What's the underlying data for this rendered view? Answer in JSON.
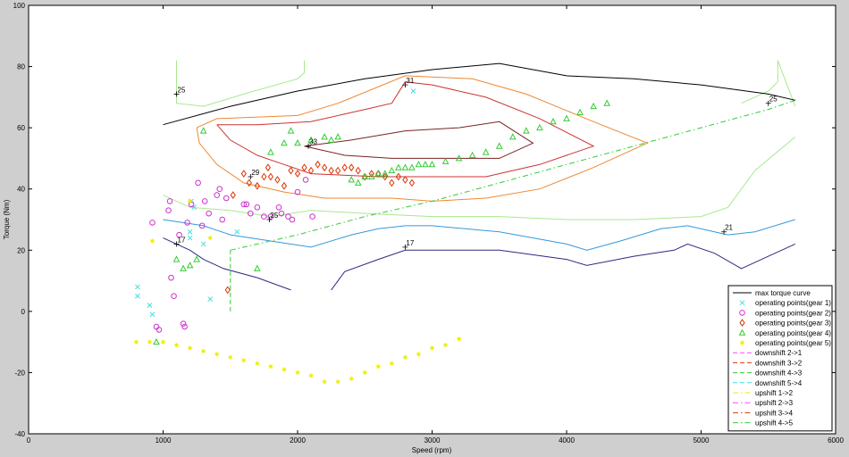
{
  "chart_data": {
    "type": "line",
    "title": "",
    "xlabel": "Speed (rpm)",
    "ylabel": "Torque (Nm)",
    "xlim": [
      0,
      6000
    ],
    "ylim": [
      -40,
      100
    ],
    "xticks": [
      0,
      1000,
      2000,
      3000,
      4000,
      5000,
      6000
    ],
    "yticks": [
      -40,
      -20,
      0,
      20,
      40,
      60,
      80,
      100
    ],
    "grid": false,
    "legend_position": "bottom-right",
    "colors": {
      "max_torque": "#000000",
      "contour_17": "#2b2b80",
      "contour_21": "#3399dd",
      "contour_25": "#a8e890",
      "contour_29": "#ee8833",
      "contour_31": "#cc3333",
      "contour_33": "#7a2222",
      "gear1": "#44dddd",
      "gear2": "#cc33cc",
      "gear3": "#dd3300",
      "gear4": "#33cc33",
      "gear5": "#eeee00"
    },
    "max_torque_curve": {
      "name": "max torque curve",
      "x": [
        1000,
        1500,
        2000,
        2500,
        3000,
        3500,
        4000,
        4500,
        5000,
        5500,
        5700
      ],
      "y": [
        61,
        67,
        72,
        76,
        79,
        81,
        77,
        76,
        74,
        71,
        69
      ]
    },
    "contours": [
      {
        "level": "17",
        "label_points": [
          [
            1100,
            22
          ],
          [
            2800,
            21
          ]
        ],
        "segments": [
          {
            "x": [
              1000,
              1100,
              1200,
              1300,
              1450,
              1700,
              1950
            ],
            "y": [
              24,
              22,
              20,
              17,
              14,
              11,
              7
            ]
          },
          {
            "x": [
              2250,
              2350,
              2600,
              2800,
              3000,
              3500,
              4000,
              4150,
              4500,
              4800,
              4900,
              5100,
              5300,
              5500,
              5700
            ],
            "y": [
              7,
              13,
              17,
              20,
              20,
              20,
              17,
              15,
              18,
              20,
              22,
              19,
              14,
              18,
              22
            ]
          }
        ]
      },
      {
        "level": "21",
        "label_points": [
          [
            5170,
            26
          ]
        ],
        "segments": [
          {
            "x": [
              1000,
              1300,
              1500,
              1800,
              2100,
              2400,
              2600,
              2800,
              3000,
              3500,
              4000,
              4150,
              4400,
              4700,
              4900,
              5100,
              5200,
              5400,
              5700
            ],
            "y": [
              30,
              28,
              25,
              23,
              21,
              25,
              27,
              28,
              28,
              26,
              22,
              20,
              23,
              27,
              28,
              26,
              25,
              26,
              30
            ]
          }
        ]
      },
      {
        "level": "25",
        "label_points": [
          [
            1100,
            71
          ],
          [
            1790,
            30
          ],
          [
            5500,
            68
          ]
        ],
        "segments": [
          {
            "x": [
              1100,
              1100,
              1100,
              1300,
              1600,
              2000,
              2050,
              2050
            ],
            "y": [
              82,
              71,
              68,
              67,
              71,
              76,
              78,
              82
            ]
          },
          {
            "x": [
              1000,
              1200,
              1500,
              1800,
              2100,
              2500,
              3000,
              3500,
              4000,
              4500,
              5000,
              5200,
              5400,
              5700
            ],
            "y": [
              38,
              34,
              33,
              31,
              33,
              32,
              31,
              31,
              30,
              30,
              31,
              34,
              46,
              57
            ]
          },
          {
            "x": [
              5300,
              5500,
              5570,
              5570,
              5700
            ],
            "y": [
              68,
              72,
              75,
              82,
              67
            ]
          }
        ]
      },
      {
        "level": "29",
        "label_points": [
          [
            1650,
            44
          ]
        ],
        "segments": [
          {
            "x": [
              1250,
              1400,
              2000,
              2300,
              2800,
              3300,
              3700,
              4200,
              4600,
              4200,
              3800,
              3400,
              3000,
              2700,
              2200,
              1900,
              1600,
              1400,
              1270,
              1250
            ],
            "y": [
              60,
              63,
              64,
              68,
              77,
              76,
              71,
              62,
              55,
              47,
              40,
              37,
              36,
              37,
              37,
              39,
              42,
              48,
              55,
              60
            ]
          }
        ]
      },
      {
        "level": "31",
        "label_points": [
          [
            2800,
            74
          ]
        ],
        "segments": [
          {
            "x": [
              1400,
              1700,
              2100,
              2500,
              2700,
              2800,
              3000,
              3400,
              3800,
              4200,
              3800,
              3400,
              3000,
              2600,
              2100,
              1900,
              1700,
              1500,
              1400
            ],
            "y": [
              61,
              61,
              62,
              66,
              68,
              75,
              74,
              70,
              63,
              54,
              48,
              44,
              44,
              44,
              45,
              48,
              51,
              56,
              61
            ]
          }
        ]
      },
      {
        "level": "33",
        "label_points": [
          [
            2080,
            54
          ]
        ],
        "segments": [
          {
            "x": [
              2050,
              2400,
              2800,
              3200,
              3500,
              3750,
              3500,
              3100,
              2700,
              2350,
              2050
            ],
            "y": [
              54,
              56,
              59,
              60,
              62,
              55,
              50,
              50,
              50,
              51,
              54
            ]
          }
        ]
      }
    ],
    "downshift_lines": [
      {
        "name": "downshift 4->3",
        "x": [
          1500,
          1500
        ],
        "y": [
          0,
          20
        ]
      }
    ],
    "upshift_lines": [
      {
        "name": "upshift 4->5",
        "x": [
          1500,
          2000,
          2500,
          3000,
          3500,
          4000,
          4500,
          5000,
          5500,
          5700
        ],
        "y": [
          20,
          25,
          31,
          36,
          42,
          48,
          54,
          60,
          66,
          69
        ]
      }
    ],
    "operating_points": [
      {
        "name": "operating points(gear 1)",
        "marker": "x",
        "x": [
          810,
          810,
          900,
          920,
          1200,
          1200,
          1210,
          1230,
          1300,
          1350,
          1550,
          2860
        ],
        "y": [
          8,
          5,
          2,
          -1,
          26,
          24,
          36,
          34,
          22,
          4,
          26,
          72
        ]
      },
      {
        "name": "operating points(gear 2)",
        "marker": "o",
        "x": [
          920,
          950,
          970,
          1040,
          1050,
          1060,
          1080,
          1120,
          1150,
          1160,
          1180,
          1210,
          1260,
          1290,
          1310,
          1340,
          1400,
          1420,
          1440,
          1470,
          1600,
          1620,
          1650,
          1700,
          1750,
          1800,
          1860,
          1880,
          1930,
          1960,
          2000,
          2060,
          2110
        ],
        "y": [
          29,
          -5,
          -6,
          33,
          36,
          11,
          5,
          25,
          -4,
          -5,
          29,
          35,
          42,
          28,
          36,
          32,
          38,
          40,
          30,
          37,
          35,
          35,
          32,
          34,
          31,
          31,
          34,
          32,
          31,
          30,
          39,
          43,
          31
        ]
      },
      {
        "name": "operating points(gear 3)",
        "marker": "d",
        "x": [
          1480,
          1520,
          1600,
          1640,
          1700,
          1750,
          1780,
          1800,
          1850,
          1900,
          1950,
          2000,
          2050,
          2100,
          2150,
          2200,
          2250,
          2300,
          2350,
          2400,
          2450,
          2500,
          2550,
          2600,
          2650,
          2700,
          2750,
          2800,
          2850
        ],
        "y": [
          7,
          38,
          45,
          42,
          41,
          44,
          47,
          44,
          43,
          41,
          46,
          45,
          47,
          46,
          48,
          47,
          46,
          46,
          47,
          47,
          46,
          44,
          45,
          45,
          44,
          42,
          44,
          43,
          42
        ]
      },
      {
        "name": "operating points(gear 4)",
        "marker": "^",
        "x": [
          950,
          1100,
          1150,
          1200,
          1250,
          1300,
          1700,
          1800,
          1900,
          1950,
          2000,
          2100,
          2200,
          2250,
          2300,
          2400,
          2450,
          2500,
          2550,
          2600,
          2650,
          2700,
          2750,
          2800,
          2850,
          2900,
          2950,
          3000,
          3100,
          3200,
          3300,
          3400,
          3500,
          3600,
          3700,
          3800,
          3900,
          4000,
          4100,
          4200,
          4300
        ],
        "y": [
          -10,
          17,
          14,
          15,
          17,
          59,
          14,
          52,
          55,
          59,
          55,
          56,
          57,
          56,
          57,
          43,
          42,
          44,
          44,
          45,
          45,
          46,
          47,
          47,
          47,
          48,
          48,
          48,
          49,
          50,
          51,
          52,
          54,
          57,
          59,
          60,
          62,
          63,
          65,
          67,
          68
        ]
      },
      {
        "name": "operating points(gear 5)",
        "marker": "*",
        "x": [
          800,
          900,
          1000,
          1100,
          1200,
          1300,
          1400,
          1500,
          1600,
          1700,
          1800,
          1900,
          2000,
          2100,
          2200,
          2300,
          2400,
          2500,
          2600,
          2700,
          2800,
          2900,
          3000,
          3100,
          3200,
          920,
          1350,
          1200
        ],
        "y": [
          -10,
          -10,
          -10,
          -11,
          -12,
          -13,
          -14,
          -15,
          -16,
          -17,
          -18,
          -19,
          -20,
          -21,
          -23,
          -23,
          -22,
          -20,
          -18,
          -17,
          -15,
          -14,
          -12,
          -11,
          -9,
          23,
          24,
          36
        ]
      }
    ],
    "legend": [
      {
        "label": "max torque curve",
        "style": "line",
        "color": "#000000"
      },
      {
        "label": "operating points(gear 1)",
        "style": "x",
        "color": "#44dddd"
      },
      {
        "label": "operating points(gear 2)",
        "style": "o",
        "color": "#cc33cc"
      },
      {
        "label": "operating points(gear 3)",
        "style": "d",
        "color": "#dd3300"
      },
      {
        "label": "operating points(gear 4)",
        "style": "^",
        "color": "#33cc33"
      },
      {
        "label": "operating points(gear 5)",
        "style": "*",
        "color": "#eeee00"
      },
      {
        "label": "downshift 2->1",
        "style": "dash",
        "color": "#ff44ff"
      },
      {
        "label": "downshift 3->2",
        "style": "dash",
        "color": "#dd3300"
      },
      {
        "label": "downshift 4->3",
        "style": "dash",
        "color": "#33cc33"
      },
      {
        "label": "downshift 5->4",
        "style": "dash",
        "color": "#44dddd"
      },
      {
        "label": "upshift 1->2",
        "style": "dashdot",
        "color": "#eeee00"
      },
      {
        "label": "upshift 2->3",
        "style": "dashdot",
        "color": "#ff44ff"
      },
      {
        "label": "upshift 3->4",
        "style": "dashdot",
        "color": "#dd3300"
      },
      {
        "label": "upshift 4->5",
        "style": "dashdot",
        "color": "#33cc33"
      }
    ]
  }
}
